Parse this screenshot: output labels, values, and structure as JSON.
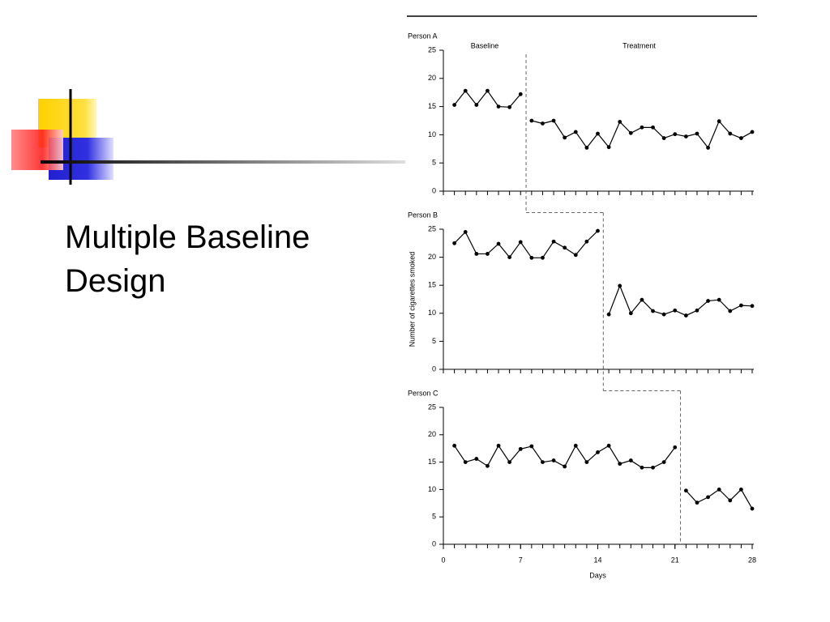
{
  "slide": {
    "title": "Multiple Baseline Design"
  },
  "chart_data": [
    {
      "type": "line",
      "title": "Person A",
      "annotations": [
        "Baseline",
        "Treatment"
      ],
      "phase_change": 7.5,
      "xlim": [
        0,
        28
      ],
      "ylim": [
        0,
        25
      ],
      "yticks": [
        0,
        5,
        10,
        15,
        20,
        25
      ],
      "color": "#000000",
      "series": [
        {
          "x": [
            1,
            2,
            3,
            4,
            5,
            6,
            7
          ],
          "values": [
            15.3,
            17.8,
            15.3,
            17.8,
            15,
            14.9,
            17.2
          ]
        },
        {
          "x": [
            8,
            9,
            10,
            11,
            12,
            13,
            14,
            15,
            16,
            17,
            18,
            19,
            20,
            21,
            22,
            23,
            24,
            25,
            26,
            27,
            28
          ],
          "values": [
            12.5,
            12,
            12.5,
            9.5,
            10.5,
            7.7,
            10.2,
            7.8,
            12.3,
            10.3,
            11.3,
            11.3,
            9.4,
            10.1,
            9.7,
            10.2,
            7.7,
            12.4,
            10.2,
            9.4,
            10.5
          ]
        }
      ]
    },
    {
      "type": "line",
      "title": "Person B",
      "ylabel": "Number of cigarettes smoked",
      "phase_change": 14.5,
      "xlim": [
        0,
        28
      ],
      "ylim": [
        0,
        25
      ],
      "yticks": [
        0,
        5,
        10,
        15,
        20,
        25
      ],
      "color": "#000000",
      "series": [
        {
          "x": [
            1,
            2,
            3,
            4,
            5,
            6,
            7,
            8,
            9,
            10,
            11,
            12,
            13,
            14
          ],
          "values": [
            22.5,
            24.5,
            20.6,
            20.6,
            22.4,
            20,
            22.7,
            19.9,
            19.9,
            22.8,
            21.7,
            20.4,
            22.8,
            24.7
          ]
        },
        {
          "x": [
            15,
            16,
            17,
            18,
            19,
            20,
            21,
            22,
            23,
            24,
            25,
            26,
            27,
            28
          ],
          "values": [
            9.8,
            14.9,
            10,
            12.4,
            10.4,
            9.8,
            10.5,
            9.6,
            10.5,
            12.2,
            12.4,
            10.4,
            11.4,
            11.3
          ]
        }
      ]
    },
    {
      "type": "line",
      "title": "Person C",
      "xlabel": "Days",
      "phase_change": 21.5,
      "xlim": [
        0,
        28
      ],
      "xticks": [
        0,
        7,
        14,
        21,
        28
      ],
      "ylim": [
        0,
        25
      ],
      "yticks": [
        0,
        5,
        10,
        15,
        20,
        25
      ],
      "color": "#000000",
      "series": [
        {
          "x": [
            1,
            2,
            3,
            4,
            5,
            6,
            7,
            8,
            9,
            10,
            11,
            12,
            13,
            14,
            15,
            16,
            17,
            18,
            19,
            20,
            21
          ],
          "values": [
            18,
            15,
            15.6,
            14.3,
            18,
            15,
            17.4,
            17.9,
            15,
            15.3,
            14.2,
            18,
            15,
            16.8,
            18,
            14.7,
            15.3,
            14,
            14,
            15,
            17.7
          ]
        },
        {
          "x": [
            22,
            23,
            24,
            25,
            26,
            27,
            28
          ],
          "values": [
            9.8,
            7.6,
            8.6,
            10,
            8,
            10,
            6.5
          ]
        }
      ]
    }
  ]
}
